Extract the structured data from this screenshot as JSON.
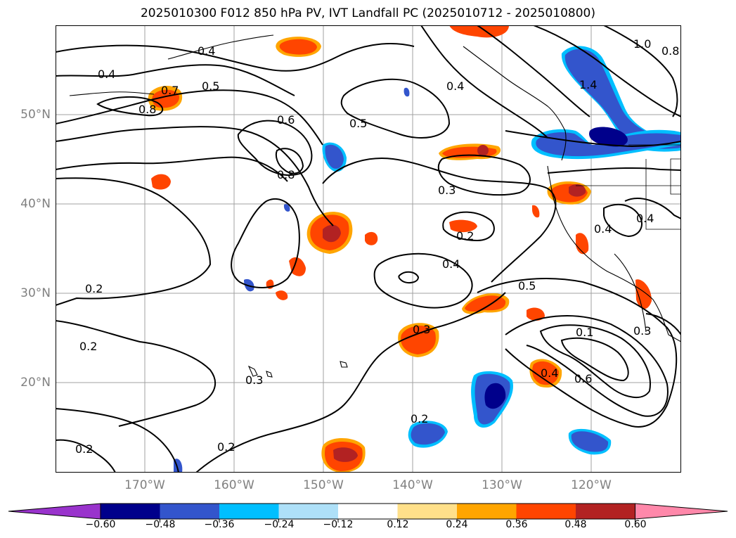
{
  "title": "2025010300 F012 850 hPa PV, IVT Landfall PC (2025010712 - 2025010800)",
  "lat_labels": [
    "50°N",
    "40°N",
    "30°N",
    "20°N"
  ],
  "lon_labels": [
    "170°W",
    "160°W",
    "150°W",
    "140°W",
    "130°W",
    "120°W"
  ],
  "contour_labels": [
    "0.4",
    "0.4",
    "0.5",
    "0.8",
    "0.7",
    "0.6",
    "0.8",
    "0.5",
    "0.4",
    "0.3",
    "0.2",
    "0.4",
    "0.5",
    "0.3",
    "0.2",
    "0.2",
    "0.3",
    "0.2",
    "0.2",
    "0.4",
    "0.6",
    "0.3",
    "0.4",
    "0.4",
    "1.0",
    "0.8",
    "1.4",
    "0.2",
    "0.1"
  ],
  "colorbar": {
    "tick_labels": [
      "−0.60",
      "−0.48",
      "−0.36",
      "−0.24",
      "−0.12",
      "0.12",
      "0.24",
      "0.36",
      "0.48",
      "0.60"
    ],
    "colors": [
      "#9933cc",
      "#00008b",
      "#3355cc",
      "#00bfff",
      "#aee0f8",
      "#ffffff",
      "#ffe08a",
      "#ffa500",
      "#ff4500",
      "#b22222",
      "#ff88aa"
    ]
  }
}
